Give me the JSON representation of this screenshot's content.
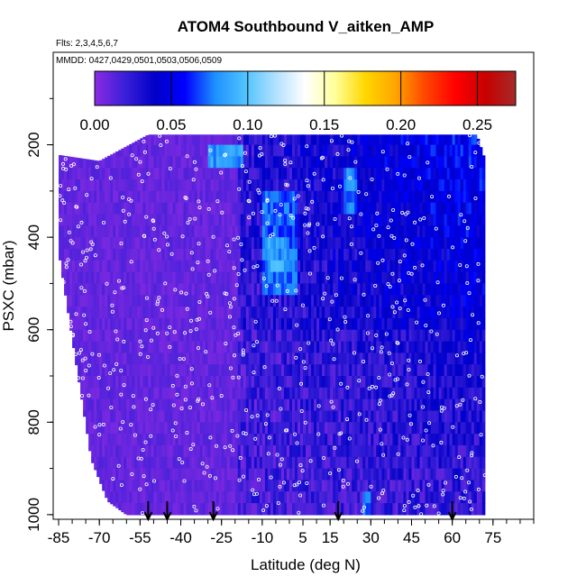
{
  "chart_data": {
    "type": "heatmap",
    "title": "ATOM4 Southbound V_aitken_AMP",
    "subtitle_lines": [
      "Flts: 2,3,4,5,6,7",
      "MMDD: 0427,0429,0501,0503,0506,0509"
    ],
    "xlabel": "Latitude (deg N)",
    "ylabel": "PSXC (mbar)",
    "xlim": [
      -87,
      90
    ],
    "ylim": [
      1010,
      0
    ],
    "x_ticks": [
      "-85",
      "-70",
      "-55",
      "-40",
      "-25",
      "-10",
      "5",
      "15",
      "30",
      "45",
      "60",
      "75"
    ],
    "x_tick_values": [
      -85,
      -70,
      -55,
      -40,
      -25,
      -10,
      5,
      15,
      30,
      45,
      60,
      75
    ],
    "y_ticks": [
      "200",
      "400",
      "600",
      "800",
      "1000"
    ],
    "y_tick_values": [
      200,
      400,
      600,
      800,
      1000
    ],
    "colorbar": {
      "ticks": [
        "0.00",
        "0.05",
        "0.10",
        "0.15",
        "0.20",
        "0.25"
      ],
      "tick_values": [
        0,
        0.05,
        0.1,
        0.15,
        0.2,
        0.25
      ],
      "range": [
        0,
        0.275
      ],
      "colors": [
        "#8a2be2",
        "#3b1fd8",
        "#0000c8",
        "#0000ff",
        "#1e90ff",
        "#4fc3ff",
        "#b0e0ff",
        "#ffffff",
        "#ffff99",
        "#ffd700",
        "#ffa500",
        "#ff4500",
        "#ff0000",
        "#c80000",
        "#a52a2a"
      ]
    },
    "coverage": {
      "lat_min": -85,
      "lat_max": 72,
      "top_pressure": [
        [
          -85,
          222
        ],
        [
          -70,
          235
        ],
        [
          -52,
          178
        ],
        [
          -30,
          178
        ],
        [
          0,
          178
        ],
        [
          30,
          178
        ],
        [
          69,
          178
        ],
        [
          72,
          232
        ]
      ],
      "bottom_pressure": [
        [
          -85,
          430
        ],
        [
          -80,
          620
        ],
        [
          -73,
          880
        ],
        [
          -67,
          970
        ],
        [
          -60,
          1000
        ],
        [
          72,
          1000
        ]
      ]
    },
    "enhanced_regions": [
      {
        "lat": [
          -30,
          -18
        ],
        "p": [
          180,
          235
        ],
        "value": 0.09
      },
      {
        "lat": [
          -10,
          2
        ],
        "p": [
          300,
          500
        ],
        "value": 0.075
      },
      {
        "lat": [
          -8,
          -2
        ],
        "p": [
          380,
          470
        ],
        "value": 0.09
      },
      {
        "lat": [
          20,
          24
        ],
        "p": [
          230,
          330
        ],
        "value": 0.08
      },
      {
        "lat": [
          27,
          29
        ],
        "p": [
          940,
          995
        ],
        "value": 0.08
      }
    ],
    "profile_markers_lat": [
      -52,
      -45,
      -28,
      18,
      60
    ]
  }
}
